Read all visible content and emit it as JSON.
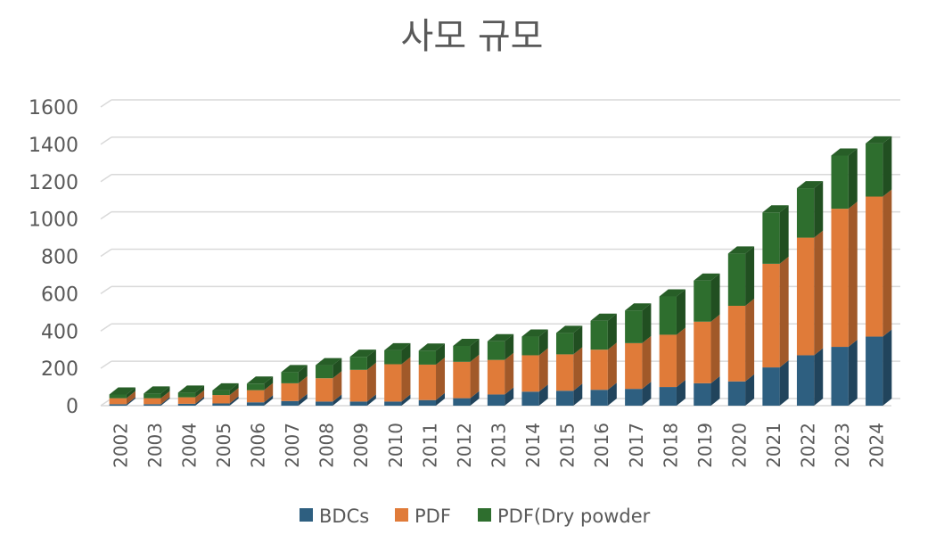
{
  "chart_data": {
    "type": "bar",
    "stacked": true,
    "style": "3d-column",
    "title": "사모 규모",
    "xlabel": "",
    "ylabel": "",
    "ylim": [
      0,
      1600
    ],
    "yticks": [
      0,
      200,
      400,
      600,
      800,
      1000,
      1200,
      1400,
      1600
    ],
    "grid": true,
    "legend_position": "bottom",
    "categories": [
      "2002",
      "2003",
      "2004",
      "2005",
      "2006",
      "2007",
      "2008",
      "2009",
      "2010",
      "2011",
      "2012",
      "2013",
      "2014",
      "2015",
      "2016",
      "2017",
      "2018",
      "2019",
      "2020",
      "2021",
      "2022",
      "2023",
      "2024"
    ],
    "series": [
      {
        "name": "BDCs",
        "color": "#2E5F80",
        "values": [
          8,
          8,
          10,
          12,
          18,
          25,
          22,
          22,
          22,
          30,
          40,
          60,
          75,
          80,
          85,
          90,
          100,
          120,
          130,
          205,
          270,
          315,
          370
        ]
      },
      {
        "name": "PDF",
        "color": "#E07B39",
        "values": [
          32,
          32,
          35,
          45,
          65,
          95,
          125,
          170,
          200,
          190,
          195,
          185,
          195,
          195,
          215,
          245,
          280,
          330,
          405,
          555,
          630,
          740,
          750
        ]
      },
      {
        "name": "PDF(Dry powder",
        "color": "#2E6E2E",
        "values": [
          20,
          25,
          25,
          25,
          35,
          60,
          70,
          70,
          75,
          75,
          85,
          100,
          100,
          115,
          155,
          175,
          205,
          220,
          280,
          275,
          265,
          285,
          285
        ]
      }
    ]
  }
}
